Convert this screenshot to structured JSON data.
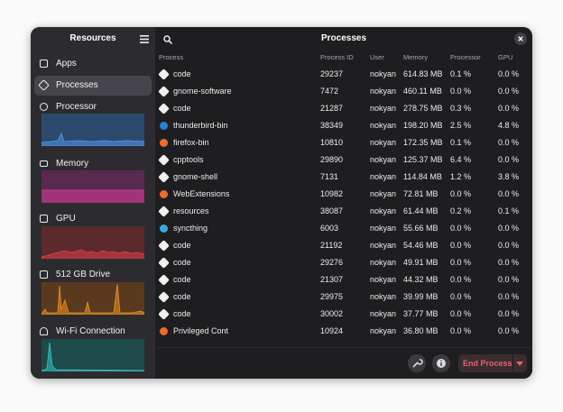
{
  "sidebar": {
    "title": "Resources",
    "items": [
      {
        "label": "Apps"
      },
      {
        "label": "Processes"
      },
      {
        "label": "Processor"
      },
      {
        "label": "Memory"
      },
      {
        "label": "GPU"
      },
      {
        "label": "512 GB Drive"
      },
      {
        "label": "Wi-Fi Connection"
      }
    ]
  },
  "header": {
    "title": "Processes"
  },
  "table": {
    "columns": [
      "Process",
      "Process ID",
      "User",
      "Memory",
      "Processor",
      "GPU"
    ],
    "rows": [
      [
        "code",
        "29237",
        "nokyan",
        "614.83 MB",
        "0.1 %",
        "0.0 %"
      ],
      [
        "gnome-software",
        "7472",
        "nokyan",
        "460.11 MB",
        "0.0 %",
        "0.0 %"
      ],
      [
        "code",
        "21287",
        "nokyan",
        "278.75 MB",
        "0.3 %",
        "0.0 %"
      ],
      [
        "thunderbird-bin",
        "38349",
        "nokyan",
        "198.20 MB",
        "2.5 %",
        "4.8 %"
      ],
      [
        "firefox-bin",
        "10810",
        "nokyan",
        "172.35 MB",
        "0.1 %",
        "0.0 %"
      ],
      [
        "cpptools",
        "29890",
        "nokyan",
        "125.37 MB",
        "6.4 %",
        "0.0 %"
      ],
      [
        "gnome-shell",
        "7131",
        "nokyan",
        "114.84 MB",
        "1.2 %",
        "3.8 %"
      ],
      [
        "WebExtensions",
        "10982",
        "nokyan",
        "72.81 MB",
        "0.0 %",
        "0.0 %"
      ],
      [
        "resources",
        "38087",
        "nokyan",
        "61.44 MB",
        "0.2 %",
        "0.1 %"
      ],
      [
        "syncthing",
        "6003",
        "nokyan",
        "55.66 MB",
        "0.0 %",
        "0.0 %"
      ],
      [
        "code",
        "21192",
        "nokyan",
        "54.46 MB",
        "0.0 %",
        "0.0 %"
      ],
      [
        "code",
        "29276",
        "nokyan",
        "49.91 MB",
        "0.0 %",
        "0.0 %"
      ],
      [
        "code",
        "21307",
        "nokyan",
        "44.32 MB",
        "0.0 %",
        "0.0 %"
      ],
      [
        "code",
        "29975",
        "nokyan",
        "39.99 MB",
        "0.0 %",
        "0.0 %"
      ],
      [
        "code",
        "30002",
        "nokyan",
        "37.77 MB",
        "0.0 %",
        "0.0 %"
      ],
      [
        "Privileged Cont",
        "10924",
        "nokyan",
        "36.80 MB",
        "0.0 %",
        "0.0 %"
      ]
    ]
  },
  "footer": {
    "end_process": "End Process"
  }
}
